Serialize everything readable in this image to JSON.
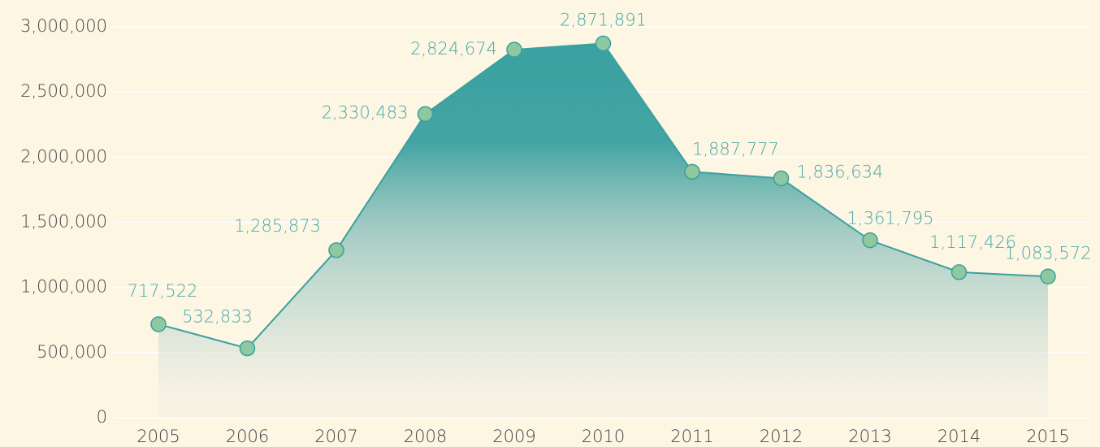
{
  "chart_data": {
    "type": "area",
    "categories": [
      "2005",
      "2006",
      "2007",
      "2008",
      "2009",
      "2010",
      "2011",
      "2012",
      "2013",
      "2014",
      "2015"
    ],
    "values": [
      717522,
      532833,
      1285873,
      2330483,
      2824674,
      2871891,
      1887777,
      1836634,
      1361795,
      1117426,
      1083572
    ],
    "value_labels": [
      "717,522",
      "532,833",
      "1,285,873",
      "2,330,483",
      "2,824,674",
      "2,871,891",
      "1,887,777",
      "1,836,634",
      "1,361,795",
      "1,117,426",
      "1,083,572"
    ],
    "color": "#3aa0a0",
    "marker_color": "#8dc8a0",
    "ylim": [
      0,
      3000000
    ],
    "yticks": [
      0,
      {
        "value": 500000,
        "label": "500,000"
      },
      {
        "value": 1000000,
        "label": "1,000,000"
      },
      {
        "value": 1500000,
        "label": "1,500,000"
      },
      {
        "value": 2000000,
        "label": "2,000,000"
      },
      {
        "value": 2500000,
        "label": "2,500,000"
      },
      {
        "value": 3000000,
        "label": "3,000,000"
      }
    ],
    "grid": true
  }
}
